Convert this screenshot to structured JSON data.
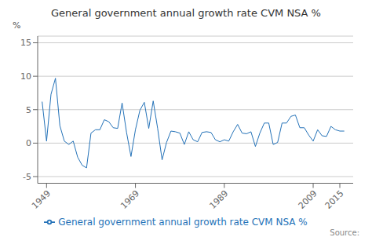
{
  "chart_data": {
    "type": "line",
    "title": "General government annual growth rate CVM NSA %",
    "ylabel": "%",
    "annotations": [
      "Source:"
    ],
    "x": [
      1948,
      1949,
      1950,
      1951,
      1952,
      1953,
      1954,
      1955,
      1956,
      1957,
      1958,
      1959,
      1960,
      1961,
      1962,
      1963,
      1964,
      1965,
      1966,
      1967,
      1968,
      1969,
      1970,
      1971,
      1972,
      1973,
      1974,
      1975,
      1976,
      1977,
      1978,
      1979,
      1980,
      1981,
      1982,
      1983,
      1984,
      1985,
      1986,
      1987,
      1988,
      1989,
      1990,
      1991,
      1992,
      1993,
      1994,
      1995,
      1996,
      1997,
      1998,
      1999,
      2000,
      2001,
      2002,
      2003,
      2004,
      2005,
      2006,
      2007,
      2008,
      2009,
      2010,
      2011,
      2012,
      2013,
      2014,
      2015,
      2016
    ],
    "series": [
      {
        "name": "General government annual growth rate CVM NSA %",
        "color": "#2472b8",
        "values": [
          6.2,
          0.3,
          7.3,
          9.7,
          2.6,
          0.3,
          -0.2,
          0.3,
          -2.1,
          -3.3,
          -3.7,
          1.5,
          2.0,
          2.0,
          3.5,
          3.2,
          2.3,
          2.2,
          6.0,
          1.6,
          -2.0,
          2.0,
          4.9,
          6.1,
          2.2,
          6.3,
          2.2,
          -2.5,
          0.1,
          1.8,
          1.7,
          1.5,
          -0.2,
          1.7,
          0.5,
          0.2,
          1.6,
          1.7,
          1.6,
          0.5,
          0.2,
          0.5,
          0.3,
          1.7,
          2.8,
          1.5,
          1.4,
          1.7,
          -0.5,
          1.5,
          3.0,
          3.0,
          -0.2,
          0.1,
          3.0,
          3.0,
          4.0,
          4.2,
          2.3,
          2.3,
          1.2,
          0.3,
          2.0,
          1.1,
          1.0,
          2.5,
          2.0,
          1.8,
          1.8
        ]
      }
    ],
    "xlim": [
      1947,
      2018
    ],
    "xticks": [
      1949,
      1969,
      1989,
      2009,
      2015
    ],
    "ylim": [
      -6,
      16
    ],
    "yticks": [
      -5,
      0,
      5,
      10,
      15
    ],
    "grid": true,
    "legend": "bottom"
  }
}
